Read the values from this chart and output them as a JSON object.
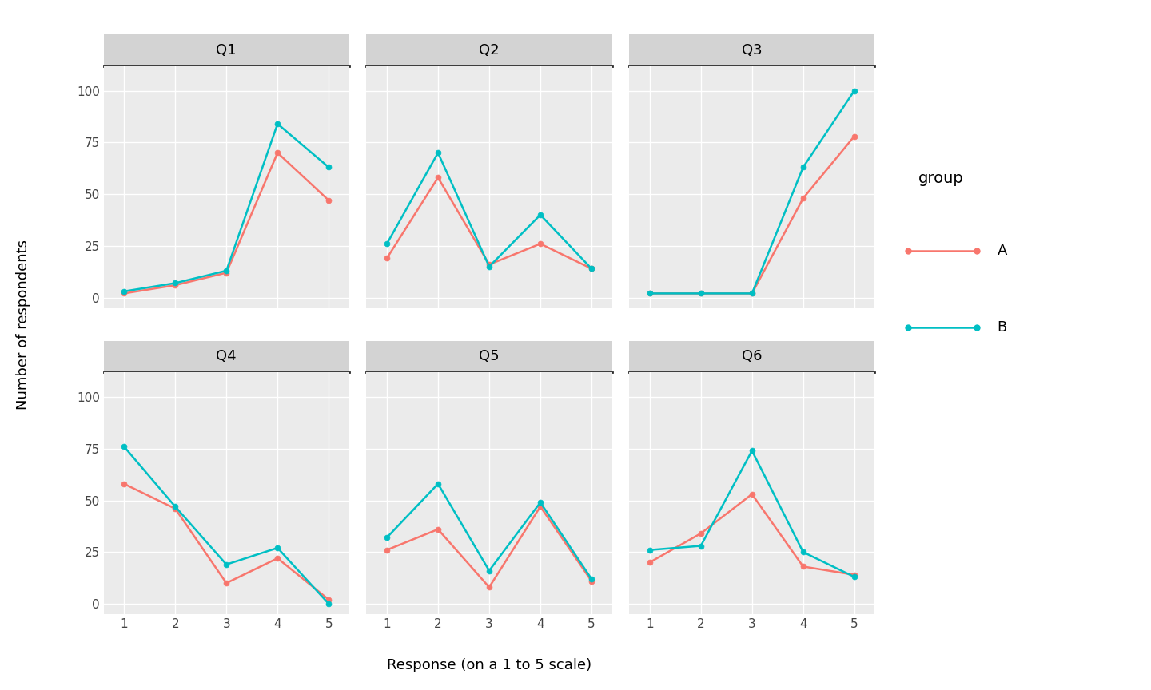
{
  "panels": [
    "Q1",
    "Q2",
    "Q3",
    "Q4",
    "Q5",
    "Q6"
  ],
  "x": [
    1,
    2,
    3,
    4,
    5
  ],
  "data": {
    "Q1": {
      "A": [
        2,
        6,
        12,
        70,
        47
      ],
      "B": [
        3,
        7,
        13,
        84,
        63
      ]
    },
    "Q2": {
      "A": [
        19,
        58,
        16,
        26,
        14
      ],
      "B": [
        26,
        70,
        15,
        40,
        14
      ]
    },
    "Q3": {
      "A": [
        2,
        2,
        2,
        48,
        78
      ],
      "B": [
        2,
        2,
        2,
        63,
        100
      ]
    },
    "Q4": {
      "A": [
        58,
        46,
        10,
        22,
        2
      ],
      "B": [
        76,
        47,
        19,
        27,
        0
      ]
    },
    "Q5": {
      "A": [
        26,
        36,
        8,
        47,
        11
      ],
      "B": [
        32,
        58,
        16,
        49,
        12
      ]
    },
    "Q6": {
      "A": [
        20,
        34,
        53,
        18,
        14
      ],
      "B": [
        26,
        28,
        74,
        25,
        13
      ]
    }
  },
  "color_A": "#F8766D",
  "color_B": "#00BFC4",
  "panel_bg_color": "#EBEBEB",
  "panel_header_color": "#D3D3D3",
  "panel_header_border_color": "#2b2b2b",
  "grid_color": "#FFFFFF",
  "ylim": [
    -5,
    112
  ],
  "yticks": [
    0,
    25,
    50,
    75,
    100
  ],
  "xlabel": "Response (on a 1 to 5 scale)",
  "ylabel": "Number of respondents",
  "legend_title": "group",
  "legend_labels": [
    "A",
    "B"
  ],
  "title_fontsize": 13,
  "axis_fontsize": 11,
  "label_fontsize": 13,
  "legend_fontsize": 13
}
